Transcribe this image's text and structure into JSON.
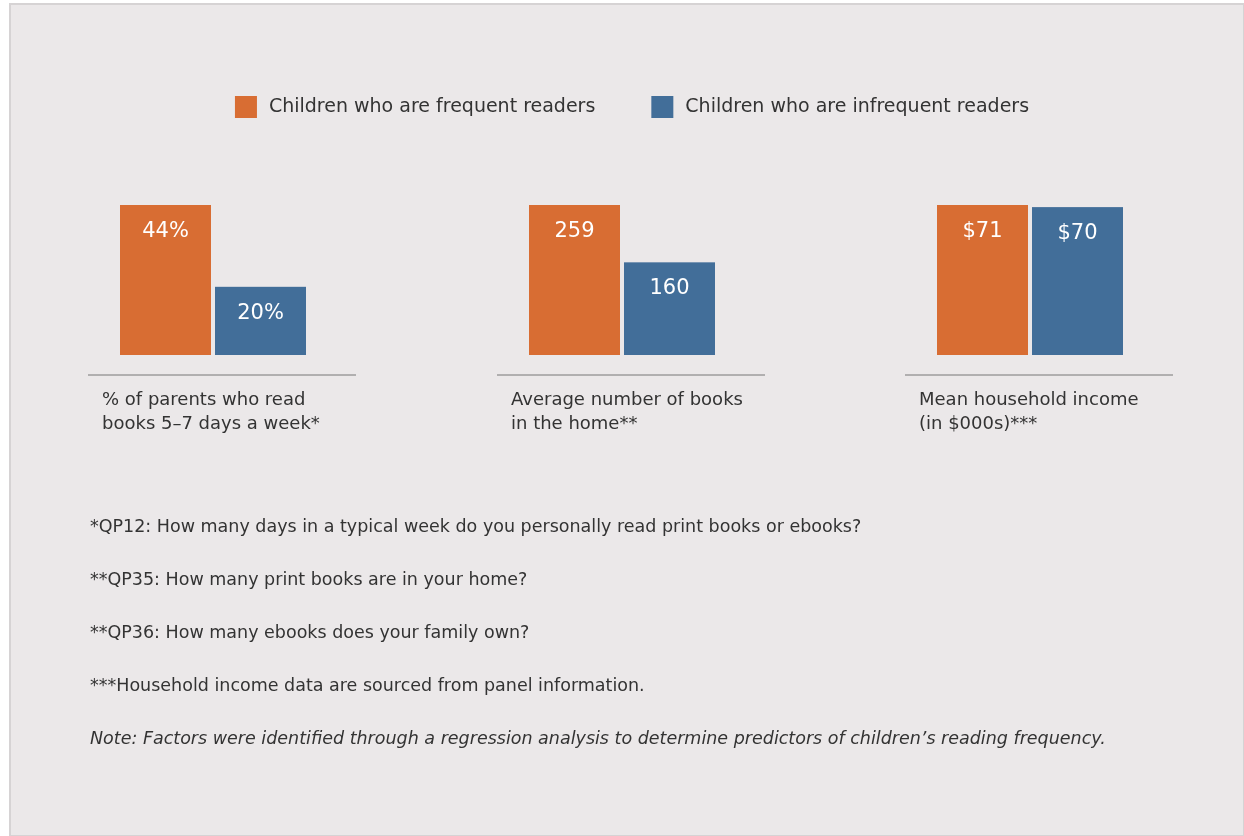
{
  "chart_data": [
    {
      "type": "bar",
      "categories": [
        null
      ],
      "xlabel": "% of parents who read books 5–7 days a week*",
      "legend": "top",
      "series": [
        {
          "name": "Children who are frequent readers",
          "color": "#d86d33",
          "values": [
            44
          ],
          "value_labels": [
            "44%"
          ]
        },
        {
          "name": "Children who are infrequent readers",
          "color": "#426e99",
          "values": [
            20
          ],
          "value_labels": [
            "20%"
          ]
        }
      ]
    },
    {
      "type": "bar",
      "categories": [
        null
      ],
      "xlabel": "Average number of books in the home**",
      "data_labels": true,
      "series": [
        {
          "color": "#d86d33",
          "values": [
            259
          ]
        },
        {
          "color": "#426e99",
          "values": [
            160
          ]
        }
      ]
    },
    {
      "type": "bar",
      "categories": [
        null
      ],
      "xlabel": "Mean household income (in $000s)***",
      "series": [
        {
          "color": "#d86d33",
          "values": [
            71
          ],
          "value_labels": [
            "$71"
          ]
        },
        {
          "color": "#426e99",
          "values": [
            70
          ],
          "value_labels": [
            "$70"
          ]
        }
      ],
      "annotations": [
        "*QP12: How many days in a typical week do you personally read print books or ebooks?",
        "**QP35: How many print books are in your home?",
        "**QP36: How many ebooks does your family own?",
        "***Household income data are sourced from panel information.",
        "Note: Factors were identified through a regression analysis to determine predictors of children’s reading frequency."
      ]
    }
  ]
}
